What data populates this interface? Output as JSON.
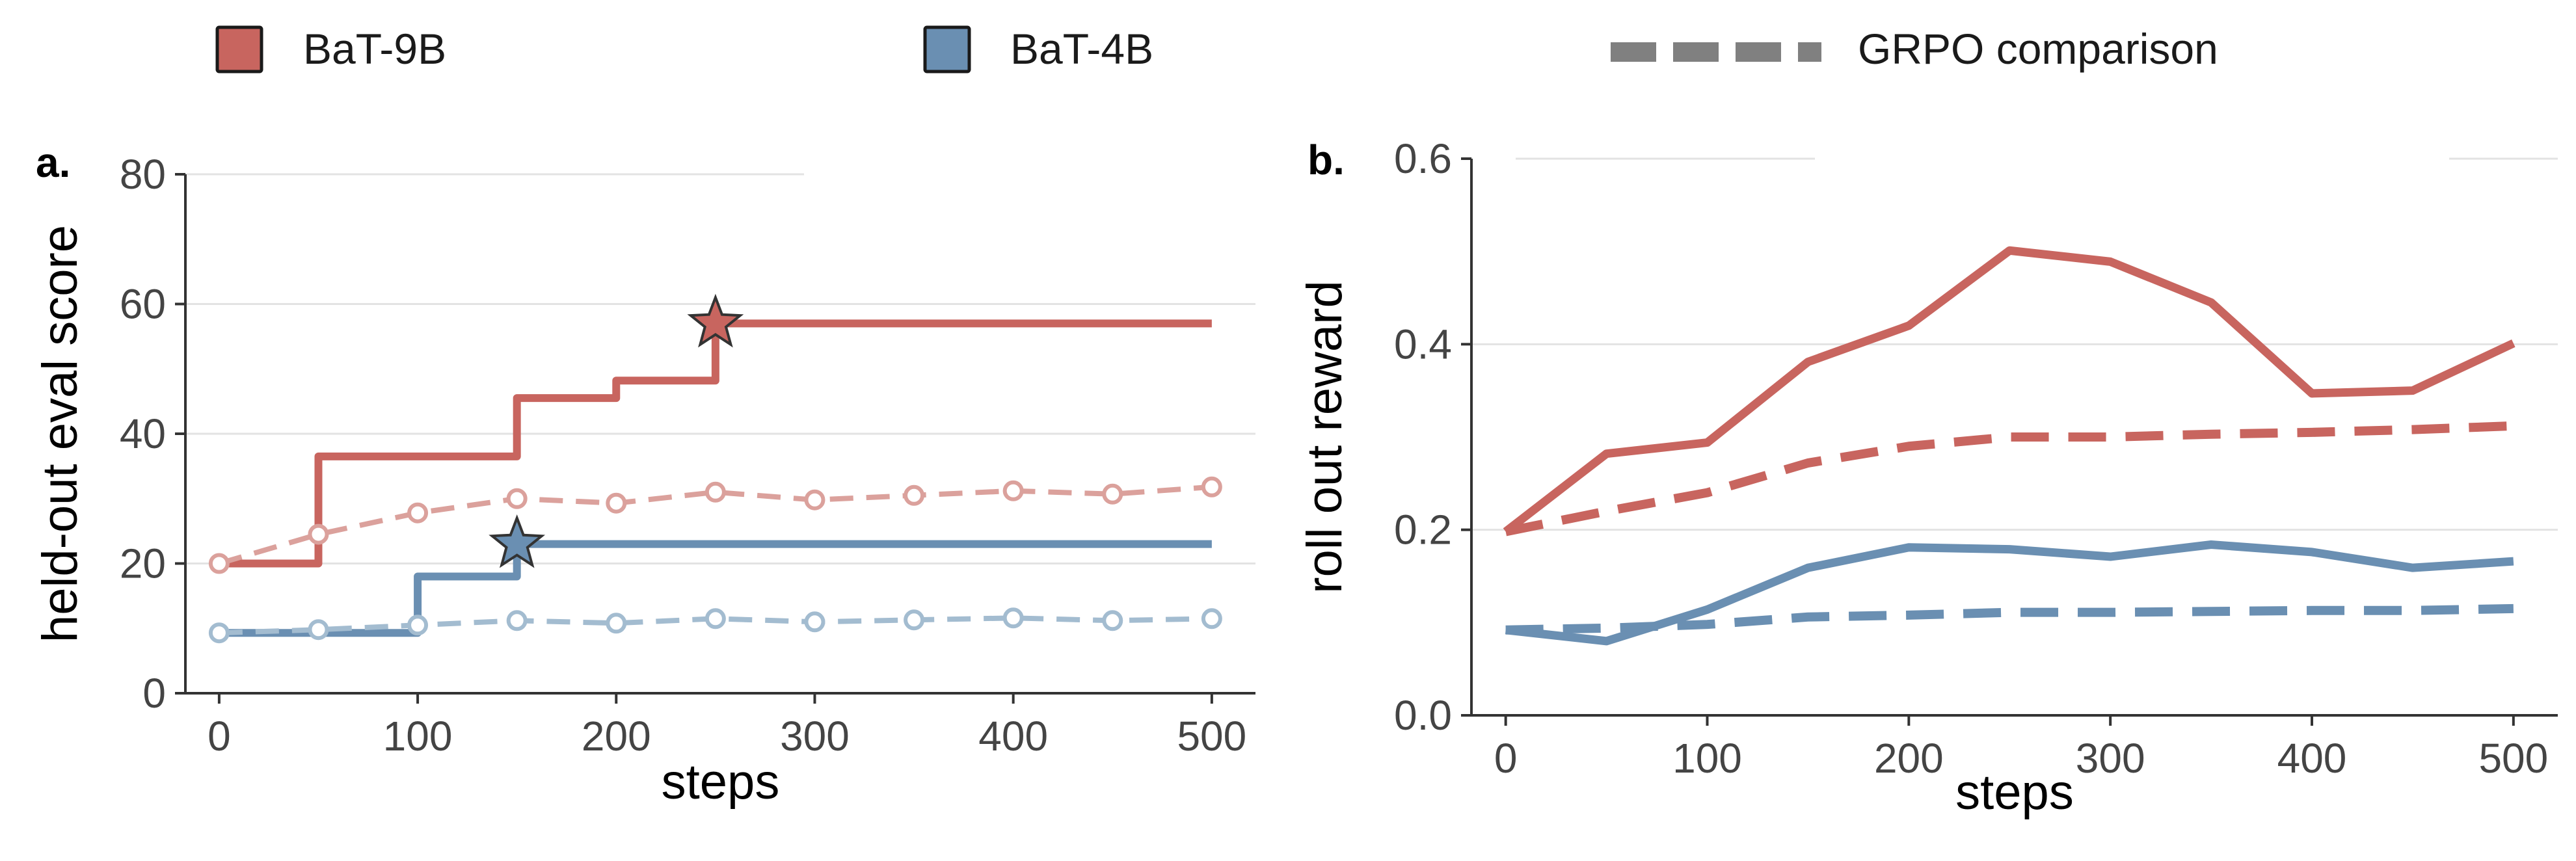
{
  "legend": {
    "items": [
      {
        "label": "BaT-9B",
        "type": "patch",
        "color": "#c8655f"
      },
      {
        "label": "BaT-4B",
        "type": "patch",
        "color": "#6a8fb2"
      },
      {
        "label": "GRPO comparison",
        "type": "dash",
        "color": "#808080"
      }
    ]
  },
  "colors": {
    "bat9b": "#c8655f",
    "bat4b": "#6a8fb2",
    "grpo": "#808080",
    "bat9b_faded": "#dba19c",
    "bat4b_faded": "#a3bcd0"
  },
  "chart_data": [
    {
      "panel": "a.",
      "type": "line",
      "xlabel": "steps",
      "ylabel": "held-out eval score",
      "xlim": [
        -17,
        522
      ],
      "ylim": [
        0,
        80
      ],
      "xticks": [
        0,
        100,
        200,
        300,
        400,
        500
      ],
      "yticks": [
        0,
        20,
        40,
        60,
        80
      ],
      "grid": "y",
      "series": [
        {
          "key": "bat9b_best",
          "style": "step",
          "color": "#c8655f",
          "x": [
            0,
            50,
            150,
            200,
            250,
            500
          ],
          "y": [
            20,
            36.5,
            45.5,
            48.2,
            57,
            57
          ],
          "marker": {
            "shape": "star",
            "x": 250,
            "y": 57
          }
        },
        {
          "key": "bat4b_best",
          "style": "step",
          "color": "#6a8fb2",
          "x": [
            0,
            100,
            150,
            500
          ],
          "y": [
            9.3,
            18,
            23,
            23
          ],
          "marker": {
            "shape": "star",
            "x": 150,
            "y": 23
          }
        },
        {
          "key": "bat9b_eval",
          "style": "dashed-markers",
          "color": "#dba19c",
          "x": [
            0,
            50,
            100,
            150,
            200,
            250,
            300,
            350,
            400,
            450,
            500
          ],
          "y": [
            20,
            24.5,
            27.8,
            30,
            29.3,
            31,
            29.8,
            30.5,
            31.2,
            30.7,
            31.8
          ]
        },
        {
          "key": "bat4b_eval",
          "style": "dashed-markers",
          "color": "#a3bcd0",
          "x": [
            0,
            50,
            100,
            150,
            200,
            250,
            300,
            350,
            400,
            450,
            500
          ],
          "y": [
            9.3,
            9.8,
            10.5,
            11.2,
            10.8,
            11.5,
            11,
            11.3,
            11.6,
            11.2,
            11.5
          ]
        }
      ]
    },
    {
      "panel": "b.",
      "type": "line",
      "xlabel": "steps",
      "ylabel": "roll out reward",
      "xlim": [
        -17,
        522
      ],
      "ylim": [
        0,
        0.6
      ],
      "xticks": [
        0,
        100,
        200,
        300,
        400,
        500
      ],
      "yticks": [
        0.0,
        0.2,
        0.4,
        0.6
      ],
      "grid": "y",
      "series": [
        {
          "key": "bat9b_reward",
          "style": "solid",
          "color": "#c8655f",
          "x": [
            0,
            50,
            100,
            150,
            200,
            250,
            300,
            350,
            400,
            450,
            500
          ],
          "y": [
            0.198,
            0.282,
            0.294,
            0.381,
            0.42,
            0.501,
            0.489,
            0.445,
            0.347,
            0.35,
            0.401
          ]
        },
        {
          "key": "grpo_9b_reward",
          "style": "dashed",
          "color": "#c8655f",
          "x": [
            0,
            50,
            100,
            150,
            200,
            250,
            300,
            350,
            400,
            450,
            500
          ],
          "y": [
            0.198,
            0.22,
            0.24,
            0.272,
            0.29,
            0.3,
            0.3,
            0.303,
            0.305,
            0.308,
            0.312
          ]
        },
        {
          "key": "bat4b_reward",
          "style": "solid",
          "color": "#6a8fb2",
          "x": [
            0,
            50,
            100,
            150,
            200,
            250,
            300,
            350,
            400,
            450,
            500
          ],
          "y": [
            0.092,
            0.08,
            0.114,
            0.159,
            0.181,
            0.179,
            0.171,
            0.184,
            0.176,
            0.159,
            0.166
          ]
        },
        {
          "key": "grpo_4b_reward",
          "style": "dashed",
          "color": "#6a8fb2",
          "x": [
            0,
            50,
            100,
            150,
            200,
            250,
            300,
            350,
            400,
            450,
            500
          ],
          "y": [
            0.092,
            0.094,
            0.098,
            0.106,
            0.108,
            0.111,
            0.111,
            0.112,
            0.113,
            0.113,
            0.115
          ]
        }
      ]
    }
  ]
}
